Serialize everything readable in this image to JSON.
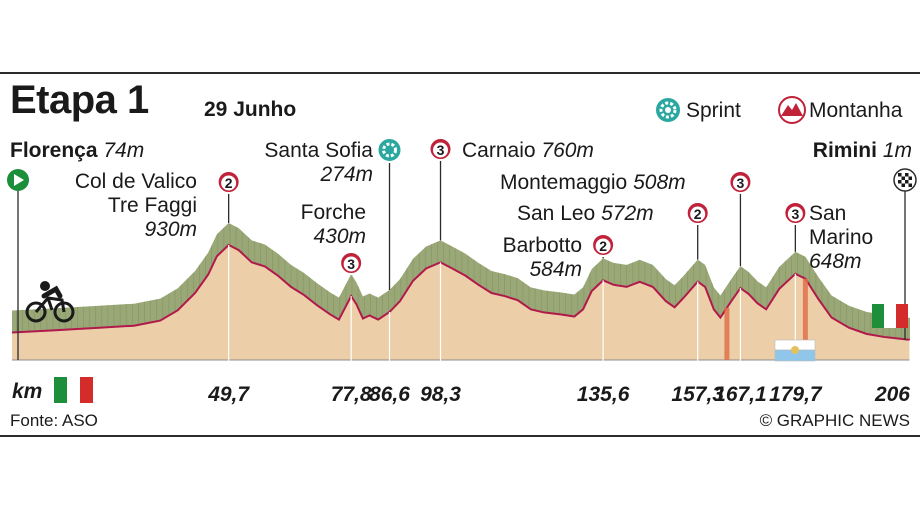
{
  "header": {
    "title": "Etapa 1",
    "date": "29 Junho"
  },
  "legend": {
    "sprint": "Sprint",
    "mountain": "Montanha",
    "sprint_icon": "sprint-gear-icon",
    "mountain_icon": "mountain-peak-icon"
  },
  "start": {
    "name": "Florença",
    "alt": "74m",
    "icon": "start-play-icon"
  },
  "finish": {
    "name": "Rimini",
    "alt": "1m",
    "icon": "checkered-flag-icon"
  },
  "places": {
    "col_de_valico": {
      "line1": "Col de Valico",
      "line2": "Tre Faggi",
      "alt": "930m",
      "category": "2"
    },
    "forche": {
      "name": "Forche",
      "alt": "430m",
      "category": "3"
    },
    "santa_sofia": {
      "name": "Santa Sofia",
      "alt": "274m"
    },
    "carnaio": {
      "name": "Carnaio",
      "alt": "760m",
      "category": "3"
    },
    "barbotto": {
      "name": "Barbotto",
      "alt": "584m",
      "category": "2"
    },
    "san_leo": {
      "name": "San Leo",
      "alt": "572m",
      "category": "2"
    },
    "montemaggio": {
      "name": "Montemaggio",
      "alt": "508m",
      "category": "3"
    },
    "san_marino": {
      "line1": "San",
      "line2": "Marino",
      "alt": "648m",
      "category": "3"
    }
  },
  "axis": {
    "unit": "km"
  },
  "footer": {
    "source": "Fonte: ASO",
    "credit": "© GRAPHIC NEWS"
  },
  "colors": {
    "mountain_badge": "#c0223a",
    "sprint_badge": "#2aa7a0",
    "terrain_green": "#9aa877",
    "profile_fill": "#eccfa9",
    "profile_line": "#b01a4b",
    "italy_green": "#1d8f3a",
    "italy_red": "#d42b2b"
  },
  "chart_data": {
    "type": "area",
    "title": "Etapa 1",
    "xlabel": "km",
    "ylabel": "",
    "xlim": [
      0,
      206
    ],
    "ticks": [
      {
        "km": 49.7,
        "label": "49,7"
      },
      {
        "km": 77.8,
        "label": "77,8"
      },
      {
        "km": 86.6,
        "label": "86,6"
      },
      {
        "km": 98.3,
        "label": "98,3"
      },
      {
        "km": 135.6,
        "label": "135,6"
      },
      {
        "km": 157.3,
        "label": "157,3"
      },
      {
        "km": 167.1,
        "label": "167,1"
      },
      {
        "km": 179.7,
        "label": "179,7"
      },
      {
        "km": 206,
        "label": "206"
      }
    ],
    "points": [
      {
        "x": 0,
        "y": 74
      },
      {
        "x": 10,
        "y": 95
      },
      {
        "x": 20,
        "y": 120
      },
      {
        "x": 28,
        "y": 140
      },
      {
        "x": 34,
        "y": 190
      },
      {
        "x": 38,
        "y": 290
      },
      {
        "x": 42,
        "y": 460
      },
      {
        "x": 45,
        "y": 640
      },
      {
        "x": 47,
        "y": 820
      },
      {
        "x": 49.7,
        "y": 930
      },
      {
        "x": 52,
        "y": 880
      },
      {
        "x": 55,
        "y": 760
      },
      {
        "x": 58,
        "y": 720
      },
      {
        "x": 61,
        "y": 630
      },
      {
        "x": 64,
        "y": 520
      },
      {
        "x": 67,
        "y": 440
      },
      {
        "x": 70,
        "y": 340
      },
      {
        "x": 73,
        "y": 250
      },
      {
        "x": 75,
        "y": 200
      },
      {
        "x": 77.8,
        "y": 430
      },
      {
        "x": 79,
        "y": 350
      },
      {
        "x": 80.5,
        "y": 210
      },
      {
        "x": 82,
        "y": 240
      },
      {
        "x": 84,
        "y": 200
      },
      {
        "x": 86.6,
        "y": 274
      },
      {
        "x": 89,
        "y": 380
      },
      {
        "x": 92,
        "y": 580
      },
      {
        "x": 95,
        "y": 700
      },
      {
        "x": 98.3,
        "y": 760
      },
      {
        "x": 101,
        "y": 700
      },
      {
        "x": 104,
        "y": 630
      },
      {
        "x": 107,
        "y": 540
      },
      {
        "x": 110,
        "y": 460
      },
      {
        "x": 113,
        "y": 430
      },
      {
        "x": 116,
        "y": 390
      },
      {
        "x": 119,
        "y": 300
      },
      {
        "x": 122,
        "y": 270
      },
      {
        "x": 126,
        "y": 250
      },
      {
        "x": 129,
        "y": 230
      },
      {
        "x": 131,
        "y": 300
      },
      {
        "x": 133,
        "y": 480
      },
      {
        "x": 135.6,
        "y": 584
      },
      {
        "x": 138,
        "y": 540
      },
      {
        "x": 141,
        "y": 520
      },
      {
        "x": 144,
        "y": 570
      },
      {
        "x": 147,
        "y": 520
      },
      {
        "x": 150,
        "y": 380
      },
      {
        "x": 152,
        "y": 320
      },
      {
        "x": 154,
        "y": 410
      },
      {
        "x": 157.3,
        "y": 572
      },
      {
        "x": 159,
        "y": 520
      },
      {
        "x": 161,
        "y": 300
      },
      {
        "x": 162.5,
        "y": 220
      },
      {
        "x": 165,
        "y": 380
      },
      {
        "x": 167.1,
        "y": 508
      },
      {
        "x": 169,
        "y": 450
      },
      {
        "x": 171,
        "y": 360
      },
      {
        "x": 173,
        "y": 300
      },
      {
        "x": 176,
        "y": 500
      },
      {
        "x": 179.7,
        "y": 648
      },
      {
        "x": 182,
        "y": 600
      },
      {
        "x": 185,
        "y": 400
      },
      {
        "x": 188,
        "y": 220
      },
      {
        "x": 192,
        "y": 120
      },
      {
        "x": 196,
        "y": 60
      },
      {
        "x": 200,
        "y": 30
      },
      {
        "x": 206,
        "y": 1
      }
    ]
  }
}
